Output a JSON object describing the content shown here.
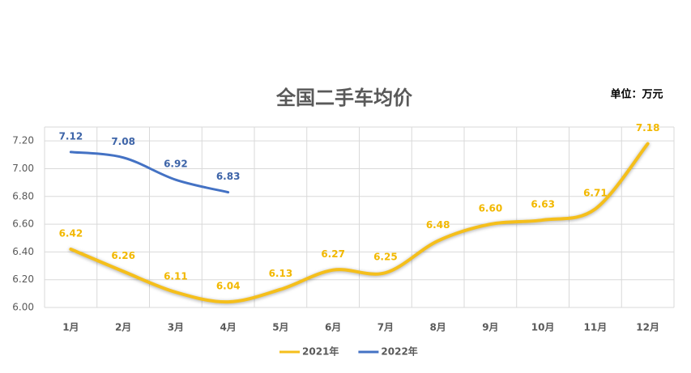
{
  "chart_data": {
    "type": "line",
    "title": "全国二手车均价",
    "annotation": "单位：万元",
    "categories": [
      "1月",
      "2月",
      "3月",
      "4月",
      "5月",
      "6月",
      "7月",
      "8月",
      "9月",
      "10月",
      "11月",
      "12月"
    ],
    "series": [
      {
        "name": "2021年",
        "color": "#f5bf1b",
        "values": [
          6.42,
          6.26,
          6.11,
          6.04,
          6.13,
          6.27,
          6.25,
          6.48,
          6.6,
          6.63,
          6.71,
          7.18
        ],
        "value_labels": [
          "6.42",
          "6.26",
          "6.11",
          "6.04",
          "6.13",
          "6.27",
          "6.25",
          "6.48",
          "6.60",
          "6.63",
          "6.71",
          "7.18"
        ]
      },
      {
        "name": "2022年",
        "color": "#4472c4",
        "values": [
          7.12,
          7.08,
          6.92,
          6.83,
          null,
          null,
          null,
          null,
          null,
          null,
          null,
          null
        ],
        "value_labels": [
          "7.12",
          "7.08",
          "6.92",
          "6.83",
          null,
          null,
          null,
          null,
          null,
          null,
          null,
          null
        ]
      }
    ],
    "ylim": [
      6.0,
      7.3
    ],
    "yticks": [
      {
        "value": 6.0,
        "label": "6.00"
      },
      {
        "value": 6.2,
        "label": "6.20"
      },
      {
        "value": 6.4,
        "label": "6.40"
      },
      {
        "value": 6.6,
        "label": "6.60"
      },
      {
        "value": 6.8,
        "label": "6.80"
      },
      {
        "value": 7.0,
        "label": "7.00"
      },
      {
        "value": 7.2,
        "label": "7.20"
      }
    ],
    "grid": true,
    "legend": "bottom"
  }
}
